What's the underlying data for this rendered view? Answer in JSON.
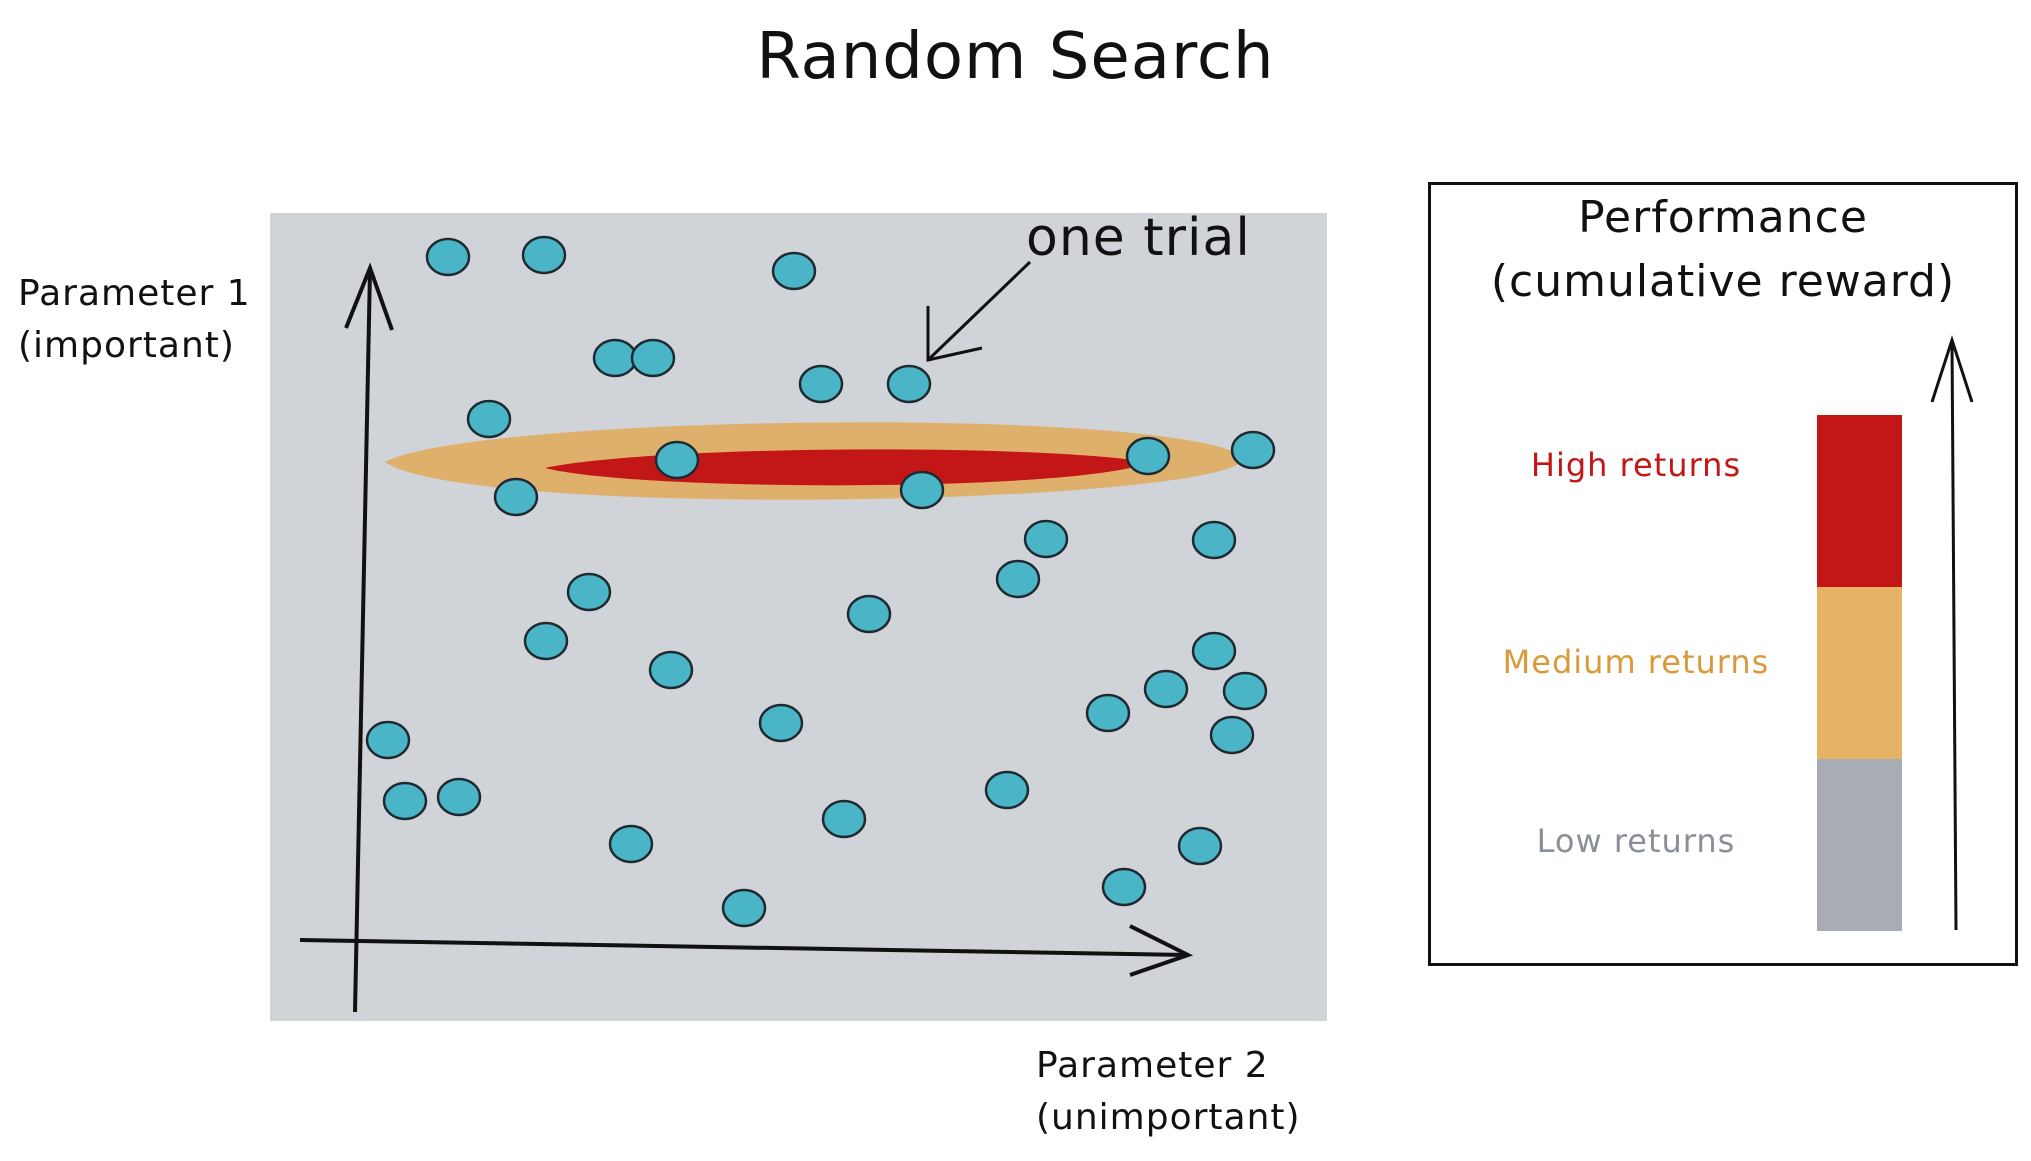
{
  "title": "Random Search",
  "axes": {
    "y_label_line1": "Parameter 1",
    "y_label_line2": "(important)",
    "x_label_line1": "Parameter 2",
    "x_label_line2": "(unimportant)"
  },
  "annotation": "one trial",
  "legend": {
    "title_line1": "Performance",
    "title_line2": "(cumulative reward)",
    "items": [
      {
        "label": "High returns",
        "color": "#c31616"
      },
      {
        "label": "Medium returns",
        "color": "#e6b265"
      },
      {
        "label": "Low returns",
        "color": "#a8adb5"
      }
    ]
  },
  "colors": {
    "plot_background": "#d0d3d7",
    "trial_point": "#4bb5c8",
    "medium_region": "#dfb06c",
    "high_region": "#c31616"
  }
}
